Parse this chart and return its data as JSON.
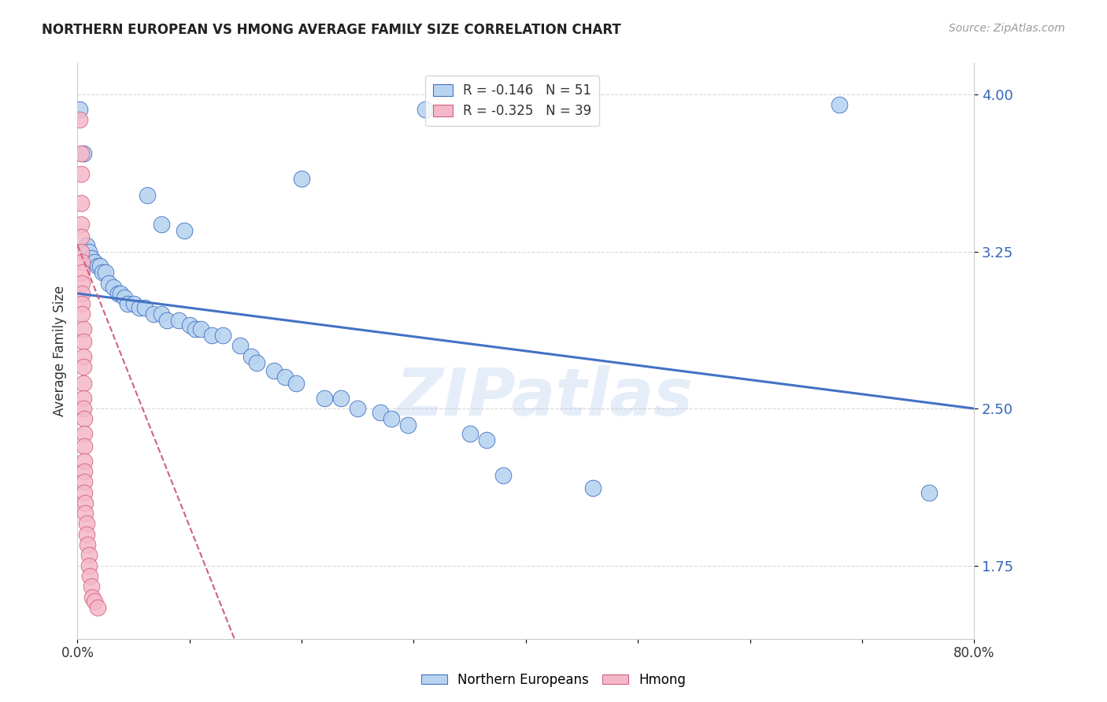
{
  "title": "NORTHERN EUROPEAN VS HMONG AVERAGE FAMILY SIZE CORRELATION CHART",
  "source": "Source: ZipAtlas.com",
  "ylabel": "Average Family Size",
  "y_ticks": [
    1.75,
    2.5,
    3.25,
    4.0
  ],
  "x_min": 0.0,
  "x_max": 0.8,
  "y_min": 1.4,
  "y_max": 4.15,
  "blue_R": "-0.146",
  "blue_N": "51",
  "pink_R": "-0.325",
  "pink_N": "39",
  "blue_color": "#b8d4f0",
  "pink_color": "#f5b8c8",
  "blue_line_color": "#4472c4",
  "pink_line_color": "#d06080",
  "blue_dots": [
    [
      0.002,
      3.93
    ],
    [
      0.31,
      3.93
    ],
    [
      0.68,
      3.95
    ],
    [
      0.005,
      3.72
    ],
    [
      0.2,
      3.6
    ],
    [
      0.062,
      3.52
    ],
    [
      0.075,
      3.38
    ],
    [
      0.095,
      3.35
    ],
    [
      0.008,
      3.28
    ],
    [
      0.01,
      3.25
    ],
    [
      0.012,
      3.22
    ],
    [
      0.015,
      3.2
    ],
    [
      0.018,
      3.18
    ],
    [
      0.02,
      3.18
    ],
    [
      0.022,
      3.15
    ],
    [
      0.025,
      3.15
    ],
    [
      0.028,
      3.1
    ],
    [
      0.032,
      3.08
    ],
    [
      0.036,
      3.05
    ],
    [
      0.038,
      3.05
    ],
    [
      0.042,
      3.03
    ],
    [
      0.045,
      3.0
    ],
    [
      0.05,
      3.0
    ],
    [
      0.055,
      2.98
    ],
    [
      0.06,
      2.98
    ],
    [
      0.068,
      2.95
    ],
    [
      0.075,
      2.95
    ],
    [
      0.08,
      2.92
    ],
    [
      0.09,
      2.92
    ],
    [
      0.1,
      2.9
    ],
    [
      0.105,
      2.88
    ],
    [
      0.11,
      2.88
    ],
    [
      0.12,
      2.85
    ],
    [
      0.13,
      2.85
    ],
    [
      0.145,
      2.8
    ],
    [
      0.155,
      2.75
    ],
    [
      0.16,
      2.72
    ],
    [
      0.175,
      2.68
    ],
    [
      0.185,
      2.65
    ],
    [
      0.195,
      2.62
    ],
    [
      0.22,
      2.55
    ],
    [
      0.235,
      2.55
    ],
    [
      0.25,
      2.5
    ],
    [
      0.27,
      2.48
    ],
    [
      0.28,
      2.45
    ],
    [
      0.295,
      2.42
    ],
    [
      0.35,
      2.38
    ],
    [
      0.365,
      2.35
    ],
    [
      0.38,
      2.18
    ],
    [
      0.46,
      2.12
    ],
    [
      0.76,
      2.1
    ]
  ],
  "pink_dots": [
    [
      0.002,
      3.88
    ],
    [
      0.003,
      3.72
    ],
    [
      0.003,
      3.62
    ],
    [
      0.003,
      3.48
    ],
    [
      0.003,
      3.38
    ],
    [
      0.003,
      3.32
    ],
    [
      0.003,
      3.25
    ],
    [
      0.004,
      3.2
    ],
    [
      0.004,
      3.15
    ],
    [
      0.004,
      3.1
    ],
    [
      0.004,
      3.05
    ],
    [
      0.004,
      3.0
    ],
    [
      0.004,
      2.95
    ],
    [
      0.005,
      2.88
    ],
    [
      0.005,
      2.82
    ],
    [
      0.005,
      2.75
    ],
    [
      0.005,
      2.7
    ],
    [
      0.005,
      2.62
    ],
    [
      0.005,
      2.55
    ],
    [
      0.005,
      2.5
    ],
    [
      0.006,
      2.45
    ],
    [
      0.006,
      2.38
    ],
    [
      0.006,
      2.32
    ],
    [
      0.006,
      2.25
    ],
    [
      0.006,
      2.2
    ],
    [
      0.006,
      2.15
    ],
    [
      0.006,
      2.1
    ],
    [
      0.007,
      2.05
    ],
    [
      0.007,
      2.0
    ],
    [
      0.008,
      1.95
    ],
    [
      0.008,
      1.9
    ],
    [
      0.009,
      1.85
    ],
    [
      0.01,
      1.8
    ],
    [
      0.01,
      1.75
    ],
    [
      0.011,
      1.7
    ],
    [
      0.012,
      1.65
    ],
    [
      0.013,
      1.6
    ],
    [
      0.015,
      1.58
    ],
    [
      0.018,
      1.55
    ]
  ],
  "blue_trend_x": [
    0.0,
    0.8
  ],
  "blue_trend_y": [
    3.05,
    2.5
  ],
  "pink_trend_x": [
    0.0,
    0.14
  ],
  "pink_trend_y": [
    3.28,
    1.4
  ],
  "watermark": "ZIPatlas",
  "background_color": "#ffffff",
  "grid_color": "#d8d8d8"
}
